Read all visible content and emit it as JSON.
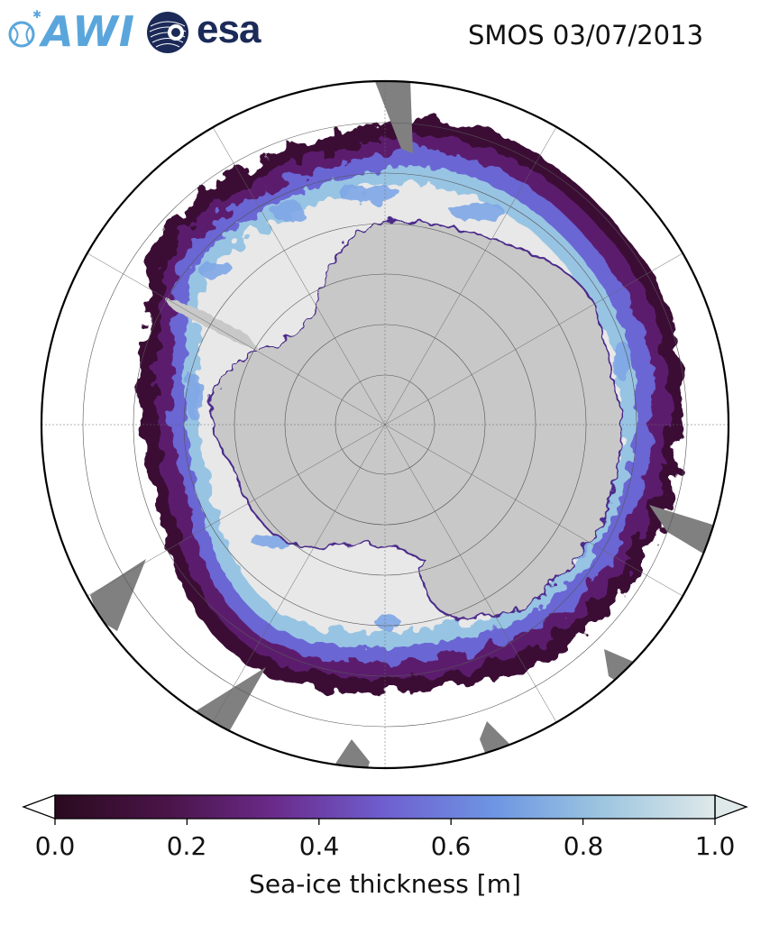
{
  "header": {
    "awi_logo_text": "AWI",
    "esa_logo_text": "esa",
    "title": "SMOS 03/07/2013"
  },
  "colorbar": {
    "label": "Sea-ice thickness [m]",
    "ticks": [
      "0.0",
      "0.2",
      "0.4",
      "0.6",
      "0.8",
      "1.0"
    ],
    "tick_values": [
      0.0,
      0.2,
      0.4,
      0.6,
      0.8,
      1.0
    ],
    "range": [
      0.0,
      1.0
    ],
    "extend": "both",
    "colormap_stops": [
      "#2a0a1f",
      "#4a1448",
      "#6a2a8a",
      "#6f5fd0",
      "#6e97e3",
      "#9dc6e0",
      "#dfe9e9"
    ]
  },
  "map": {
    "projection": "south-polar-stereographic",
    "land_color": "#c8c8c8",
    "ocean_color": "#ffffff",
    "thick_ice_color": "#e8e8e8",
    "missing_data_color": "#808080",
    "graticule": "on"
  }
}
